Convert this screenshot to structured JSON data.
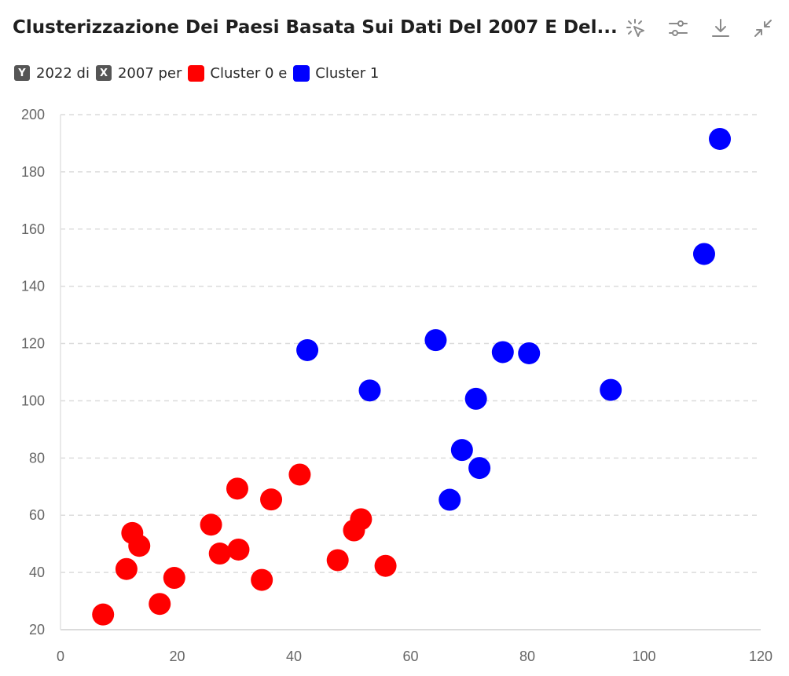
{
  "header": {
    "title": "Clusterizzazione Dei Paesi Basata Sui Dati Del 2007 E Del...",
    "toolbar": [
      {
        "name": "select-icon",
        "label": "select"
      },
      {
        "name": "settings-sliders-icon",
        "label": "settings"
      },
      {
        "name": "download-icon",
        "label": "download"
      },
      {
        "name": "collapse-icon",
        "label": "collapse"
      }
    ]
  },
  "legend": {
    "y_badge": "Y",
    "y_text": "2022 di",
    "x_badge": "X",
    "x_text": "2007 per",
    "series": [
      {
        "label": "Cluster 0 e",
        "color": "#ff0000"
      },
      {
        "label": "Cluster 1",
        "color": "#0000ff"
      }
    ]
  },
  "chart_data": {
    "type": "scatter",
    "title": "Clusterizzazione Dei Paesi Basata Sui Dati Del 2007 E Del...",
    "xlabel": "",
    "ylabel": "",
    "xlim": [
      0,
      120
    ],
    "ylim": [
      20,
      200
    ],
    "x_ticks": [
      "0",
      "20",
      "40",
      "60",
      "80",
      "100",
      "120"
    ],
    "y_ticks": [
      "20",
      "40",
      "60",
      "80",
      "100",
      "120",
      "140",
      "160",
      "180",
      "200"
    ],
    "grid": "horizontal-dashed",
    "series": [
      {
        "name": "Cluster 0",
        "color": "#ff0000",
        "points": [
          [
            7.3,
            25.3
          ],
          [
            11.3,
            41.2
          ],
          [
            12.3,
            53.8
          ],
          [
            13.5,
            49.3
          ],
          [
            17.0,
            29.0
          ],
          [
            19.5,
            38.1
          ],
          [
            25.8,
            56.7
          ],
          [
            27.3,
            46.6
          ],
          [
            30.3,
            69.3
          ],
          [
            30.5,
            48.0
          ],
          [
            34.5,
            37.4
          ],
          [
            36.1,
            65.5
          ],
          [
            41.0,
            74.2
          ],
          [
            47.5,
            44.3
          ],
          [
            50.3,
            54.7
          ],
          [
            51.5,
            58.6
          ],
          [
            55.7,
            42.3
          ]
        ]
      },
      {
        "name": "Cluster 1",
        "color": "#0000ff",
        "points": [
          [
            42.3,
            117.7
          ],
          [
            53.0,
            103.6
          ],
          [
            64.3,
            121.2
          ],
          [
            66.7,
            65.4
          ],
          [
            68.8,
            82.8
          ],
          [
            71.2,
            100.7
          ],
          [
            71.8,
            76.5
          ],
          [
            75.8,
            117.0
          ],
          [
            80.3,
            116.6
          ],
          [
            94.3,
            103.8
          ],
          [
            110.3,
            151.3
          ],
          [
            113.0,
            191.5
          ]
        ]
      }
    ]
  }
}
